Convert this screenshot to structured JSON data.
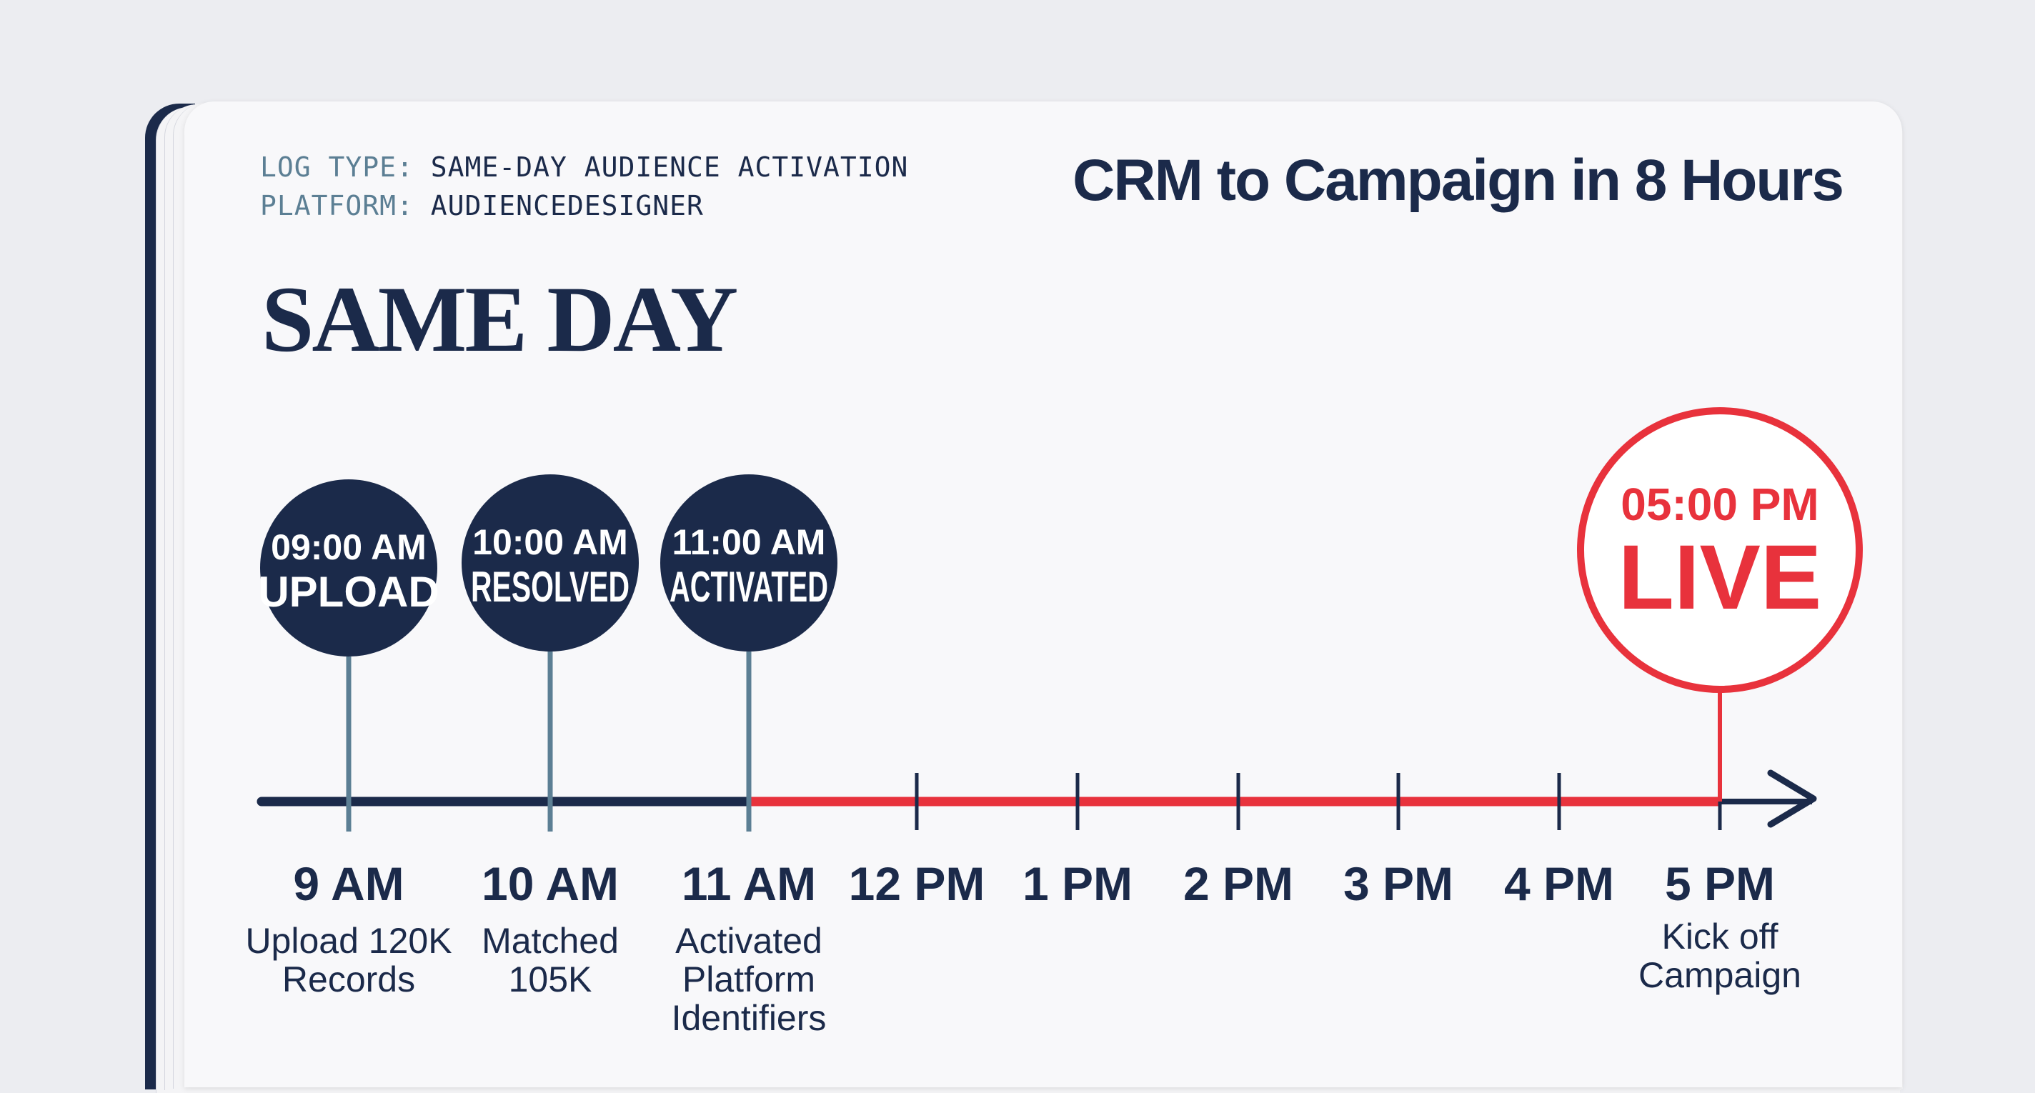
{
  "header": {
    "log_type_label": "LOG TYPE:",
    "log_type_value": "SAME-DAY AUDIENCE ACTIVATION",
    "platform_label": "PLATFORM:",
    "platform_value": "AUDIENCEDESIGNER",
    "title": "CRM to Campaign in 8 Hours"
  },
  "headline": "SAME DAY",
  "colors": {
    "navy": "#1b2a4a",
    "red": "#e8323c",
    "steel": "#5c7f94",
    "page": "#f8f8fa"
  },
  "timeline": {
    "ticks": [
      "9 AM",
      "10 AM",
      "11 AM",
      "12 PM",
      "1 PM",
      "2 PM",
      "3 PM",
      "4 PM",
      "5 PM"
    ],
    "milestones": [
      {
        "tick": 0,
        "time": "09:00 AM",
        "label": "UPLOAD",
        "caption": [
          "Upload 120K",
          "Records"
        ],
        "style": "navy"
      },
      {
        "tick": 1,
        "time": "10:00 AM",
        "label": "RESOLVED",
        "caption": [
          "Matched",
          "105K"
        ],
        "style": "navy"
      },
      {
        "tick": 2,
        "time": "11:00 AM",
        "label": "ACTIVATED",
        "caption": [
          "Activated",
          "Platform",
          "Identifiers"
        ],
        "style": "navy"
      },
      {
        "tick": 8,
        "time": "05:00 PM",
        "label": "LIVE",
        "caption": [
          "Kick off",
          "Campaign"
        ],
        "style": "red"
      }
    ]
  }
}
